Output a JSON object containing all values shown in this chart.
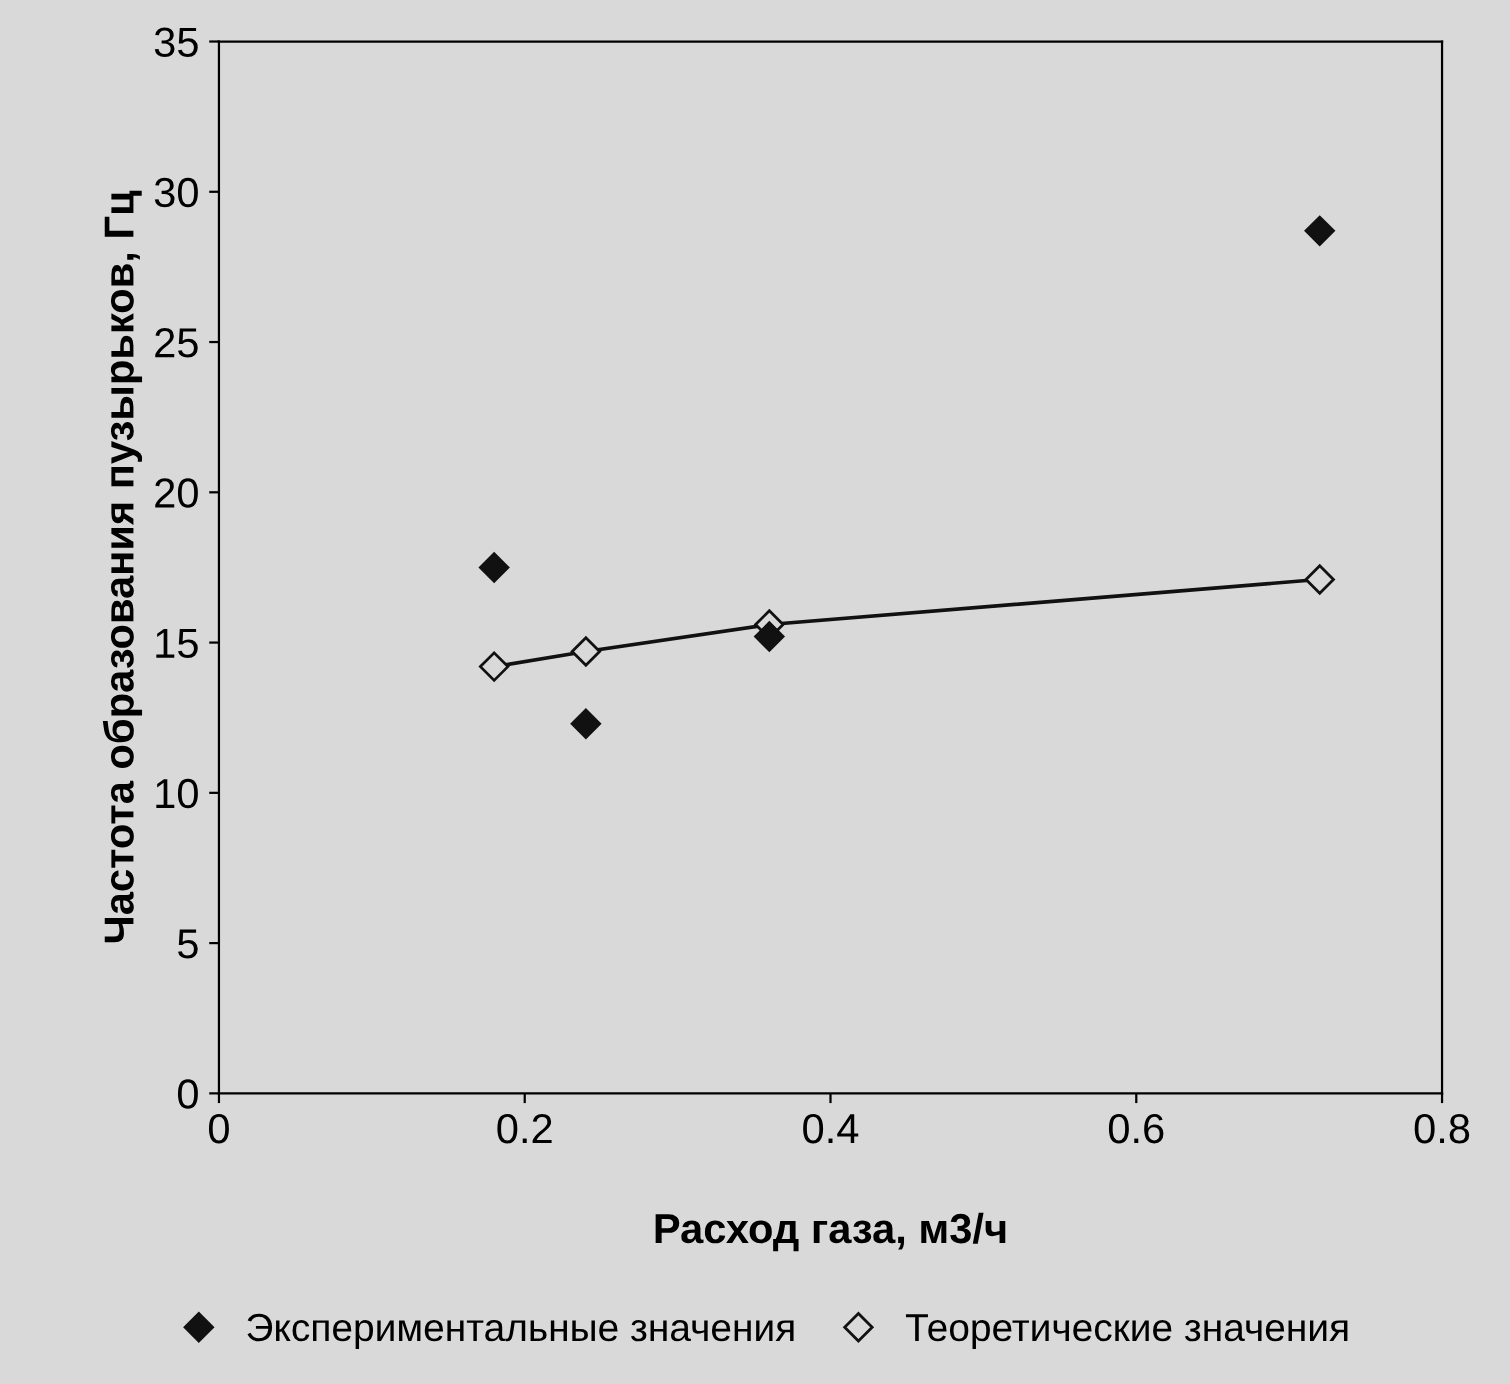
{
  "chart_data": {
    "type": "scatter",
    "xlabel": "Расход газа, м3/ч",
    "ylabel": "Частота образования пузырьков, Гц",
    "x": [
      0.18,
      0.24,
      0.36,
      0.72
    ],
    "series": [
      {
        "name": "Экспериментальные значения",
        "color": "#111111",
        "marker": "diamond",
        "values": [
          17.5,
          12.3,
          15.2,
          28.7
        ]
      },
      {
        "name": "Теоретические значения",
        "type": "line",
        "color": "#111111",
        "marker": "diamond",
        "values": [
          14.2,
          14.7,
          15.6,
          17.1
        ]
      }
    ],
    "xlim": [
      0,
      0.8
    ],
    "xticks": [
      0,
      0.2,
      0.4,
      0.6,
      0.8
    ],
    "ylim": [
      0,
      35
    ],
    "yticks": [
      0,
      5,
      10,
      15,
      20,
      25,
      30,
      35
    ],
    "grid": false,
    "legend": "bottom"
  }
}
